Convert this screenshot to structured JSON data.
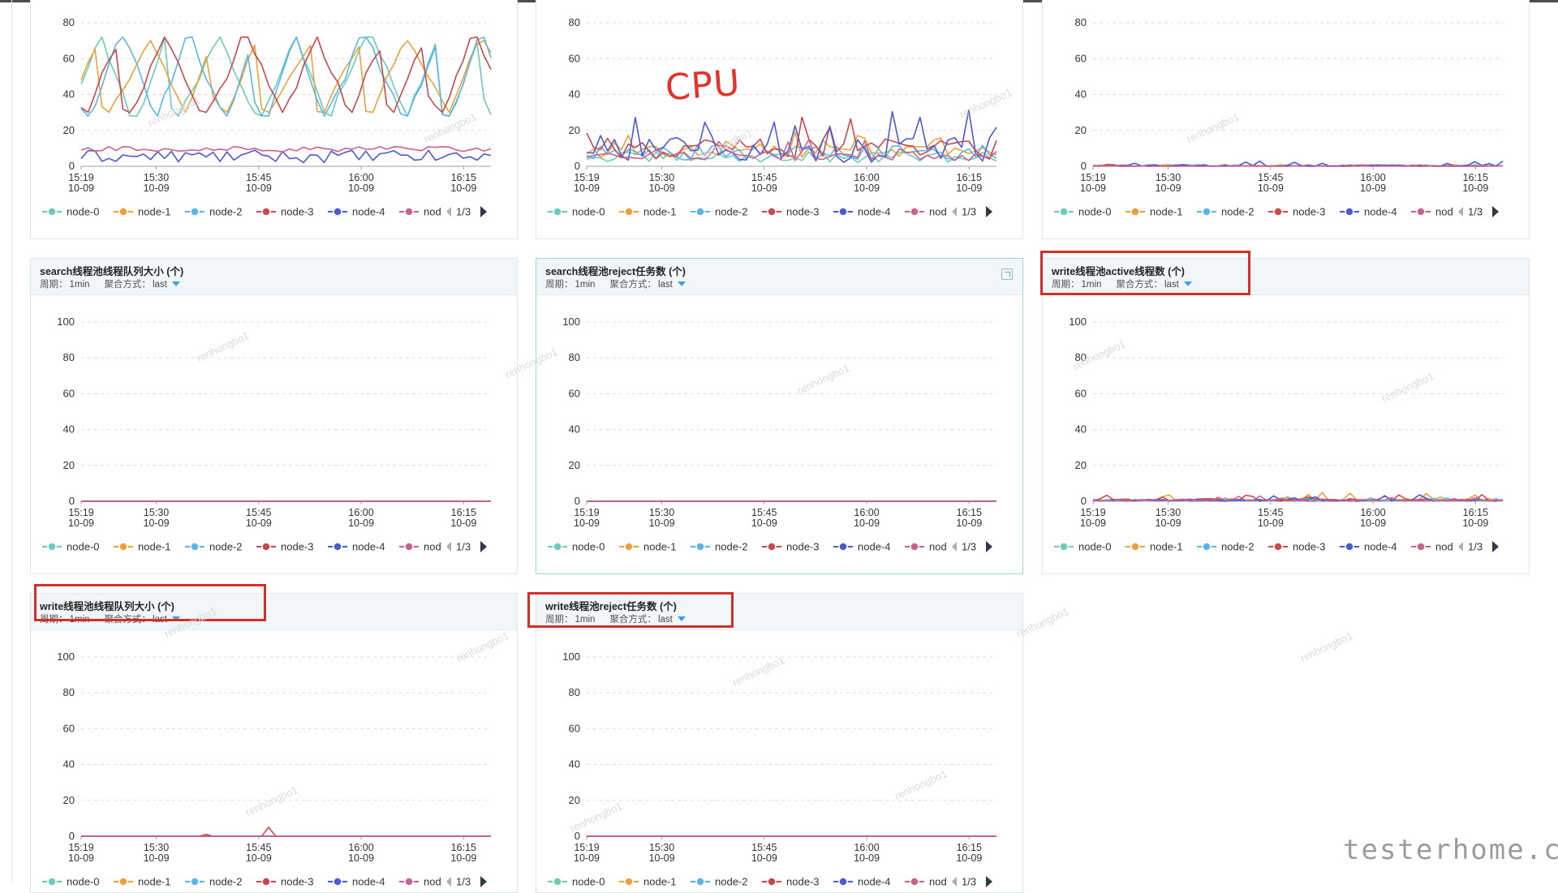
{
  "legend_names": [
    "node-0",
    "node-1",
    "node-2",
    "node-3",
    "node-4",
    "nod"
  ],
  "legend_colors": [
    "#6bcbb8",
    "#e9a23b",
    "#5bb6e8",
    "#c9494a",
    "#4c5ad0",
    "#c8628f"
  ],
  "pager": "1/3",
  "x_ticks": [
    {
      "time": "15:19",
      "date": "10-09"
    },
    {
      "time": "15:30",
      "date": "10-09"
    },
    {
      "time": "15:45",
      "date": "10-09"
    },
    {
      "time": "16:00",
      "date": "10-09"
    },
    {
      "time": "16:15",
      "date": "10-09"
    }
  ],
  "labels": {
    "period": "周期：",
    "agg": "聚合方式："
  },
  "annotation": "CPU",
  "watermark": "renhongbo1",
  "logo_text": "testerhome.com",
  "panels": [
    {
      "id": "p1",
      "title": "",
      "period": "",
      "agg": "",
      "ymax": 80,
      "yticks": [
        0,
        20,
        40,
        60,
        80
      ],
      "chart_data": {
        "type": "line",
        "ylim": [
          0,
          80
        ],
        "x_range": [
          "15:19",
          "16:19"
        ],
        "series": [
          {
            "name": "node-0",
            "level": "high",
            "range": [
              28,
              72
            ]
          },
          {
            "name": "node-1",
            "level": "high",
            "range": [
              30,
              70
            ]
          },
          {
            "name": "node-2",
            "level": "high",
            "range": [
              28,
              72
            ]
          },
          {
            "name": "node-3",
            "level": "high",
            "range": [
              30,
              72
            ]
          },
          {
            "name": "node-4",
            "level": "mid",
            "range": [
              2,
              9
            ]
          },
          {
            "name": "nod",
            "level": "low",
            "range": [
              8,
              11
            ]
          }
        ]
      }
    },
    {
      "id": "p2",
      "title": "",
      "period": "",
      "agg": "",
      "ymax": 80,
      "yticks": [
        0,
        20,
        40,
        60,
        80
      ],
      "chart_data": {
        "type": "line",
        "ylim": [
          0,
          80
        ],
        "x_range": [
          "15:19",
          "16:19"
        ],
        "series": [
          {
            "name": "node-0",
            "level": "low",
            "range": [
              2,
              8
            ]
          },
          {
            "name": "node-1",
            "level": "low",
            "range": [
              5,
              20
            ]
          },
          {
            "name": "node-2",
            "level": "low",
            "range": [
              3,
              12
            ]
          },
          {
            "name": "node-3",
            "level": "low",
            "range": [
              4,
              30
            ]
          },
          {
            "name": "node-4",
            "level": "low",
            "range": [
              2,
              36
            ]
          },
          {
            "name": "nod",
            "level": "low",
            "range": [
              3,
              15
            ]
          }
        ]
      }
    },
    {
      "id": "p3",
      "title": "",
      "period": "",
      "agg": "",
      "ymax": 80,
      "yticks": [
        0,
        20,
        40,
        60,
        80
      ],
      "chart_data": {
        "type": "line",
        "ylim": [
          0,
          80
        ],
        "x_range": [
          "15:19",
          "16:19"
        ],
        "series": [
          {
            "name": "node-0",
            "level": "zero",
            "range": [
              0,
              1
            ]
          },
          {
            "name": "node-1",
            "level": "zero",
            "range": [
              0,
              1
            ]
          },
          {
            "name": "node-2",
            "level": "zero",
            "range": [
              0,
              1
            ]
          },
          {
            "name": "node-3",
            "level": "zero",
            "range": [
              0,
              1
            ]
          },
          {
            "name": "node-4",
            "level": "zero",
            "range": [
              0,
              3
            ]
          },
          {
            "name": "nod",
            "level": "zero",
            "range": [
              0,
              1
            ]
          }
        ]
      }
    },
    {
      "id": "p4",
      "title": "search线程池线程队列大小 (个)",
      "period": "1min",
      "agg": "last",
      "ymax": 100,
      "yticks": [
        0,
        20,
        40,
        60,
        80,
        100
      ],
      "chart_data": {
        "type": "line",
        "ylim": [
          0,
          100
        ],
        "x_range": [
          "15:19",
          "16:19"
        ],
        "series": [
          {
            "name": "node-0",
            "level": "flat",
            "range": [
              0,
              0
            ]
          },
          {
            "name": "node-1",
            "level": "flat",
            "range": [
              0,
              0
            ]
          },
          {
            "name": "node-2",
            "level": "flat",
            "range": [
              0,
              0
            ]
          },
          {
            "name": "node-3",
            "level": "flat",
            "range": [
              0,
              0
            ]
          },
          {
            "name": "node-4",
            "level": "flat",
            "range": [
              0,
              0
            ]
          },
          {
            "name": "nod",
            "level": "flat",
            "range": [
              0,
              0
            ]
          }
        ]
      }
    },
    {
      "id": "p5",
      "title": "search线程池reject任务数 (个)",
      "period": "1min",
      "agg": "last",
      "ymax": 100,
      "yticks": [
        0,
        20,
        40,
        60,
        80,
        100
      ],
      "chart_data": {
        "type": "line",
        "ylim": [
          0,
          100
        ],
        "x_range": [
          "15:19",
          "16:19"
        ],
        "series": [
          {
            "name": "node-0",
            "level": "flat",
            "range": [
              0,
              0
            ]
          },
          {
            "name": "node-1",
            "level": "flat",
            "range": [
              0,
              0
            ]
          },
          {
            "name": "node-2",
            "level": "flat",
            "range": [
              0,
              0
            ]
          },
          {
            "name": "node-3",
            "level": "flat",
            "range": [
              0,
              0
            ]
          },
          {
            "name": "node-4",
            "level": "flat",
            "range": [
              0,
              0
            ]
          },
          {
            "name": "nod",
            "level": "flat",
            "range": [
              0,
              0
            ]
          }
        ]
      }
    },
    {
      "id": "p6",
      "title": "write线程池active线程数 (个)",
      "period": "1min",
      "agg": "last",
      "ymax": 100,
      "yticks": [
        0,
        20,
        40,
        60,
        80,
        100
      ],
      "chart_data": {
        "type": "line",
        "ylim": [
          0,
          100
        ],
        "x_range": [
          "15:19",
          "16:19"
        ],
        "series": [
          {
            "name": "node-0",
            "level": "zero",
            "range": [
              0,
              2
            ]
          },
          {
            "name": "node-1",
            "level": "zero",
            "range": [
              0,
              5
            ]
          },
          {
            "name": "node-2",
            "level": "zero",
            "range": [
              0,
              2
            ]
          },
          {
            "name": "node-3",
            "level": "zero",
            "range": [
              0,
              6
            ]
          },
          {
            "name": "node-4",
            "level": "zero",
            "range": [
              0,
              4
            ]
          },
          {
            "name": "nod",
            "level": "zero",
            "range": [
              0,
              3
            ]
          }
        ]
      }
    },
    {
      "id": "p7",
      "title": "write线程池线程队列大小 (个)",
      "period": "1min",
      "agg": "last",
      "ymax": 100,
      "yticks": [
        0,
        20,
        40,
        60,
        80,
        100
      ],
      "chart_data": {
        "type": "line",
        "ylim": [
          0,
          100
        ],
        "x_range": [
          "15:19",
          "16:19"
        ],
        "series": [
          {
            "name": "node-0",
            "level": "flat",
            "range": [
              0,
              0
            ]
          },
          {
            "name": "node-1",
            "level": "flat",
            "range": [
              0,
              0
            ]
          },
          {
            "name": "node-2",
            "level": "flat",
            "range": [
              0,
              0
            ]
          },
          {
            "name": "node-3",
            "level": "spike",
            "range": [
              0,
              5
            ]
          },
          {
            "name": "node-4",
            "level": "flat",
            "range": [
              0,
              1
            ]
          },
          {
            "name": "nod",
            "level": "flat",
            "range": [
              0,
              0
            ]
          }
        ]
      }
    },
    {
      "id": "p8",
      "title": "write线程池reject任务数 (个)",
      "period": "1min",
      "agg": "last",
      "ymax": 100,
      "yticks": [
        0,
        20,
        40,
        60,
        80,
        100
      ],
      "chart_data": {
        "type": "line",
        "ylim": [
          0,
          100
        ],
        "x_range": [
          "15:19",
          "16:19"
        ],
        "series": [
          {
            "name": "node-0",
            "level": "flat",
            "range": [
              0,
              0
            ]
          },
          {
            "name": "node-1",
            "level": "flat",
            "range": [
              0,
              0
            ]
          },
          {
            "name": "node-2",
            "level": "flat",
            "range": [
              0,
              0
            ]
          },
          {
            "name": "node-3",
            "level": "flat",
            "range": [
              0,
              0
            ]
          },
          {
            "name": "node-4",
            "level": "flat",
            "range": [
              0,
              0
            ]
          },
          {
            "name": "nod",
            "level": "flat",
            "range": [
              0,
              0
            ]
          }
        ]
      }
    }
  ]
}
